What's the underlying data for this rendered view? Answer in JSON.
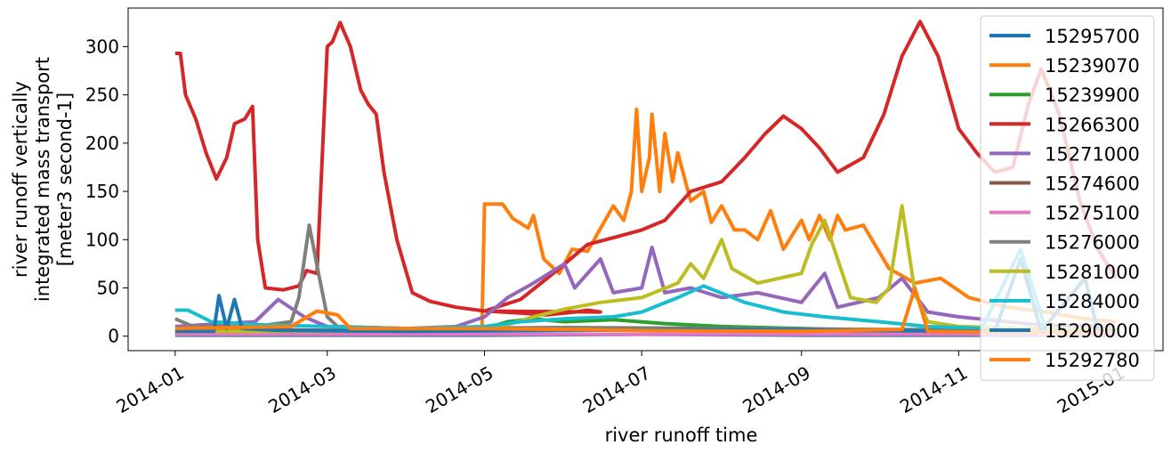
{
  "chart_data": {
    "type": "line",
    "xlabel": "river runoff time",
    "ylabel_lines": [
      "river runoff vertically",
      "integrated mass transport",
      "[meter3 second-1]"
    ],
    "xlim": [
      "2014-01-01",
      "2015-01-01"
    ],
    "ylim": [
      -15,
      340
    ],
    "x_ticks": [
      "2014-01",
      "2014-03",
      "2014-05",
      "2014-07",
      "2014-09",
      "2014-11",
      "2015-01"
    ],
    "y_ticks": [
      0,
      50,
      100,
      150,
      200,
      250,
      300
    ],
    "legend_position": "right",
    "grid": false,
    "series": [
      {
        "name": "15295700",
        "color": "#1f77b4",
        "points": [
          [
            "2014-01-01",
            1
          ],
          [
            "2014-03-01",
            1
          ],
          [
            "2014-05-01",
            1
          ],
          [
            "2014-07-01",
            2
          ],
          [
            "2014-09-01",
            1
          ],
          [
            "2014-11-01",
            1
          ],
          [
            "2015-01-01",
            1
          ]
        ]
      },
      {
        "name": "15239070",
        "color": "#ff7f0e",
        "points": [
          [
            "2014-01-01",
            6
          ],
          [
            "2014-04-20",
            6
          ],
          [
            "2014-04-30",
            7
          ],
          [
            "2014-05-01",
            137
          ],
          [
            "2014-05-08",
            137
          ],
          [
            "2014-05-12",
            122
          ],
          [
            "2014-05-18",
            112
          ],
          [
            "2014-05-20",
            125
          ],
          [
            "2014-05-24",
            80
          ],
          [
            "2014-05-30",
            65
          ],
          [
            "2014-06-04",
            90
          ],
          [
            "2014-06-10",
            88
          ],
          [
            "2014-06-20",
            135
          ],
          [
            "2014-06-24",
            120
          ],
          [
            "2014-06-27",
            150
          ],
          [
            "2014-06-29",
            235
          ],
          [
            "2014-07-01",
            150
          ],
          [
            "2014-07-04",
            185
          ],
          [
            "2014-07-05",
            230
          ],
          [
            "2014-07-08",
            150
          ],
          [
            "2014-07-10",
            210
          ],
          [
            "2014-07-13",
            160
          ],
          [
            "2014-07-15",
            190
          ],
          [
            "2014-07-20",
            140
          ],
          [
            "2014-07-25",
            150
          ],
          [
            "2014-07-28",
            118
          ],
          [
            "2014-08-01",
            135
          ],
          [
            "2014-08-06",
            110
          ],
          [
            "2014-08-10",
            110
          ],
          [
            "2014-08-15",
            100
          ],
          [
            "2014-08-20",
            130
          ],
          [
            "2014-08-25",
            90
          ],
          [
            "2014-09-01",
            120
          ],
          [
            "2014-09-04",
            100
          ],
          [
            "2014-09-08",
            125
          ],
          [
            "2014-09-12",
            100
          ],
          [
            "2014-09-15",
            125
          ],
          [
            "2014-09-18",
            110
          ],
          [
            "2014-09-25",
            115
          ],
          [
            "2014-10-05",
            70
          ],
          [
            "2014-10-15",
            55
          ],
          [
            "2014-10-25",
            60
          ],
          [
            "2014-11-05",
            40
          ],
          [
            "2014-11-20",
            30
          ],
          [
            "2014-12-05",
            25
          ],
          [
            "2014-12-20",
            18
          ],
          [
            "2015-01-01",
            15
          ]
        ]
      },
      {
        "name": "15239900",
        "color": "#2ca02c",
        "points": [
          [
            "2014-01-01",
            2
          ],
          [
            "2014-04-01",
            2
          ],
          [
            "2014-05-01",
            8
          ],
          [
            "2014-05-10",
            15
          ],
          [
            "2014-05-20",
            18
          ],
          [
            "2014-06-01",
            15
          ],
          [
            "2014-06-20",
            17
          ],
          [
            "2014-07-10",
            13
          ],
          [
            "2014-08-01",
            10
          ],
          [
            "2014-09-01",
            8
          ],
          [
            "2014-10-01",
            6
          ],
          [
            "2014-11-01",
            4
          ],
          [
            "2015-01-01",
            3
          ]
        ]
      },
      {
        "name": "15266300",
        "color": "#d62728",
        "points": [
          [
            "2014-01-01",
            293
          ],
          [
            "2014-01-03",
            293
          ],
          [
            "2014-01-05",
            250
          ],
          [
            "2014-01-09",
            225
          ],
          [
            "2014-01-13",
            190
          ],
          [
            "2014-01-17",
            163
          ],
          [
            "2014-01-21",
            185
          ],
          [
            "2014-01-24",
            220
          ],
          [
            "2014-01-28",
            225
          ],
          [
            "2014-01-31",
            238
          ],
          [
            "2014-02-02",
            100
          ],
          [
            "2014-02-05",
            50
          ],
          [
            "2014-02-12",
            48
          ],
          [
            "2014-02-18",
            52
          ],
          [
            "2014-02-21",
            68
          ],
          [
            "2014-02-25",
            65
          ],
          [
            "2014-03-01",
            300
          ],
          [
            "2014-03-03",
            305
          ],
          [
            "2014-03-06",
            325
          ],
          [
            "2014-03-10",
            300
          ],
          [
            "2014-03-14",
            255
          ],
          [
            "2014-03-17",
            240
          ],
          [
            "2014-03-20",
            230
          ],
          [
            "2014-03-23",
            170
          ],
          [
            "2014-03-28",
            100
          ],
          [
            "2014-04-03",
            45
          ],
          [
            "2014-04-10",
            36
          ],
          [
            "2014-04-20",
            30
          ],
          [
            "2014-05-01",
            26
          ],
          [
            "2014-05-15",
            24
          ],
          [
            "2014-05-25",
            22
          ],
          [
            "2014-06-05",
            25
          ],
          [
            "2014-06-10",
            27
          ],
          [
            "2014-06-15",
            25
          ],
          [
            "2014-05-01",
            26
          ],
          [
            "2014-05-15",
            38
          ],
          [
            "2014-05-30",
            70
          ],
          [
            "2014-06-10",
            95
          ],
          [
            "2014-06-20",
            102
          ],
          [
            "2014-07-01",
            110
          ],
          [
            "2014-07-10",
            120
          ],
          [
            "2014-07-20",
            150
          ],
          [
            "2014-08-01",
            160
          ],
          [
            "2014-08-10",
            185
          ],
          [
            "2014-08-18",
            210
          ],
          [
            "2014-08-25",
            228
          ],
          [
            "2014-09-01",
            215
          ],
          [
            "2014-09-08",
            195
          ],
          [
            "2014-09-15",
            170
          ],
          [
            "2014-09-25",
            185
          ],
          [
            "2014-10-03",
            230
          ],
          [
            "2014-10-10",
            290
          ],
          [
            "2014-10-17",
            326
          ],
          [
            "2014-10-24",
            290
          ],
          [
            "2014-11-01",
            215
          ],
          [
            "2014-11-08",
            190
          ],
          [
            "2014-11-15",
            170
          ],
          [
            "2014-11-22",
            175
          ],
          [
            "2014-11-28",
            240
          ],
          [
            "2014-12-03",
            277
          ],
          [
            "2014-12-10",
            230
          ],
          [
            "2014-12-18",
            140
          ],
          [
            "2014-12-25",
            90
          ],
          [
            "2015-01-01",
            60
          ]
        ]
      },
      {
        "name": "15271000",
        "color": "#9467bd",
        "points": [
          [
            "2014-01-01",
            10
          ],
          [
            "2014-02-01",
            15
          ],
          [
            "2014-02-10",
            38
          ],
          [
            "2014-02-20",
            20
          ],
          [
            "2014-03-01",
            10
          ],
          [
            "2014-04-01",
            8
          ],
          [
            "2014-04-20",
            10
          ],
          [
            "2014-05-01",
            20
          ],
          [
            "2014-05-10",
            40
          ],
          [
            "2014-05-20",
            55
          ],
          [
            "2014-06-01",
            75
          ],
          [
            "2014-06-05",
            50
          ],
          [
            "2014-06-15",
            80
          ],
          [
            "2014-06-20",
            45
          ],
          [
            "2014-07-01",
            50
          ],
          [
            "2014-07-05",
            92
          ],
          [
            "2014-07-10",
            45
          ],
          [
            "2014-07-20",
            50
          ],
          [
            "2014-08-01",
            40
          ],
          [
            "2014-08-15",
            45
          ],
          [
            "2014-09-01",
            35
          ],
          [
            "2014-09-10",
            65
          ],
          [
            "2014-09-15",
            30
          ],
          [
            "2014-10-01",
            40
          ],
          [
            "2014-10-10",
            60
          ],
          [
            "2014-10-20",
            25
          ],
          [
            "2014-11-01",
            20
          ],
          [
            "2014-12-01",
            12
          ],
          [
            "2015-01-01",
            10
          ]
        ]
      },
      {
        "name": "15274600",
        "color": "#8c564b",
        "points": [
          [
            "2014-01-01",
            8
          ],
          [
            "2014-03-01",
            6
          ],
          [
            "2014-05-01",
            8
          ],
          [
            "2014-07-01",
            8
          ],
          [
            "2014-09-01",
            6
          ],
          [
            "2014-11-01",
            5
          ],
          [
            "2015-01-01",
            5
          ]
        ]
      },
      {
        "name": "15275100",
        "color": "#e377c2",
        "points": [
          [
            "2014-01-01",
            2
          ],
          [
            "2014-03-01",
            2
          ],
          [
            "2014-05-01",
            2
          ],
          [
            "2014-07-01",
            2
          ],
          [
            "2014-09-01",
            2
          ],
          [
            "2014-11-01",
            2
          ],
          [
            "2015-01-01",
            2
          ]
        ]
      },
      {
        "name": "15276000",
        "color": "#7f7f7f",
        "points": [
          [
            "2014-01-01",
            18
          ],
          [
            "2014-01-08",
            10
          ],
          [
            "2014-02-01",
            10
          ],
          [
            "2014-02-15",
            15
          ],
          [
            "2014-02-18",
            40
          ],
          [
            "2014-02-22",
            115
          ],
          [
            "2014-02-26",
            60
          ],
          [
            "2014-03-01",
            20
          ],
          [
            "2014-03-05",
            10
          ],
          [
            "2014-04-01",
            8
          ],
          [
            "2014-06-01",
            9
          ],
          [
            "2014-08-01",
            8
          ],
          [
            "2014-10-01",
            7
          ],
          [
            "2015-01-01",
            6
          ]
        ]
      },
      {
        "name": "15281000",
        "color": "#bcbd22",
        "points": [
          [
            "2014-01-01",
            5
          ],
          [
            "2014-03-01",
            5
          ],
          [
            "2014-04-20",
            8
          ],
          [
            "2014-05-10",
            12
          ],
          [
            "2014-05-20",
            20
          ],
          [
            "2014-06-01",
            28
          ],
          [
            "2014-06-15",
            35
          ],
          [
            "2014-07-01",
            40
          ],
          [
            "2014-07-15",
            55
          ],
          [
            "2014-07-20",
            75
          ],
          [
            "2014-07-25",
            60
          ],
          [
            "2014-08-01",
            100
          ],
          [
            "2014-08-05",
            70
          ],
          [
            "2014-08-15",
            55
          ],
          [
            "2014-09-01",
            65
          ],
          [
            "2014-09-05",
            95
          ],
          [
            "2014-09-10",
            120
          ],
          [
            "2014-09-15",
            80
          ],
          [
            "2014-09-20",
            40
          ],
          [
            "2014-09-30",
            35
          ],
          [
            "2014-10-05",
            50
          ],
          [
            "2014-10-10",
            135
          ],
          [
            "2014-10-15",
            45
          ],
          [
            "2014-10-20",
            15
          ],
          [
            "2014-11-01",
            10
          ],
          [
            "2014-12-01",
            8
          ],
          [
            "2015-01-01",
            7
          ]
        ]
      },
      {
        "name": "15284000",
        "color": "#17becf",
        "points": [
          [
            "2014-01-01",
            27
          ],
          [
            "2014-01-06",
            27
          ],
          [
            "2014-01-15",
            15
          ],
          [
            "2014-02-01",
            12
          ],
          [
            "2014-03-01",
            10
          ],
          [
            "2014-04-01",
            8
          ],
          [
            "2014-05-01",
            10
          ],
          [
            "2014-05-15",
            15
          ],
          [
            "2014-06-01",
            18
          ],
          [
            "2014-06-20",
            20
          ],
          [
            "2014-07-01",
            25
          ],
          [
            "2014-07-15",
            40
          ],
          [
            "2014-07-25",
            52
          ],
          [
            "2014-08-10",
            35
          ],
          [
            "2014-08-25",
            25
          ],
          [
            "2014-09-10",
            20
          ],
          [
            "2014-10-01",
            15
          ],
          [
            "2014-10-20",
            10
          ],
          [
            "2014-11-10",
            8
          ],
          [
            "2014-11-25",
            90
          ],
          [
            "2014-12-05",
            5
          ],
          [
            "2015-01-01",
            5
          ]
        ]
      },
      {
        "name": "15290000",
        "color": "#1f77b4",
        "points": [
          [
            "2014-01-01",
            5
          ],
          [
            "2014-01-16",
            5
          ],
          [
            "2014-01-18",
            42
          ],
          [
            "2014-01-21",
            8
          ],
          [
            "2014-01-24",
            38
          ],
          [
            "2014-01-27",
            8
          ],
          [
            "2014-02-10",
            6
          ],
          [
            "2014-04-01",
            5
          ],
          [
            "2014-06-01",
            6
          ],
          [
            "2014-08-01",
            7
          ],
          [
            "2014-10-01",
            6
          ],
          [
            "2014-11-15",
            5
          ],
          [
            "2014-11-25",
            80
          ],
          [
            "2014-12-03",
            5
          ],
          [
            "2014-12-20",
            60
          ],
          [
            "2014-12-25",
            5
          ],
          [
            "2015-01-01",
            5
          ]
        ]
      },
      {
        "name": "15292780",
        "color": "#ff7f0e",
        "points": [
          [
            "2014-01-01",
            8
          ],
          [
            "2014-02-15",
            10
          ],
          [
            "2014-02-25",
            26
          ],
          [
            "2014-03-05",
            22
          ],
          [
            "2014-03-10",
            8
          ],
          [
            "2014-05-01",
            8
          ],
          [
            "2014-07-01",
            6
          ],
          [
            "2014-09-01",
            5
          ],
          [
            "2014-10-10",
            7
          ],
          [
            "2014-10-15",
            50
          ],
          [
            "2014-10-20",
            5
          ],
          [
            "2014-12-01",
            4
          ],
          [
            "2015-01-01",
            4
          ]
        ]
      }
    ]
  }
}
